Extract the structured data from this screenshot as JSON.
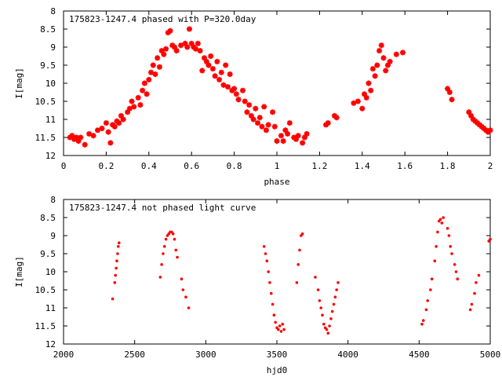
{
  "colors": {
    "series": "#ff0000",
    "axis": "#000000",
    "background": "#ffffff"
  },
  "chart_data": [
    {
      "type": "scatter",
      "title": "175823-1247.4 phased with P=320.0day",
      "xlabel": "phase",
      "ylabel": "I[mag]",
      "xlim": [
        0,
        2
      ],
      "ylim": [
        12,
        8
      ],
      "y_inverted": true,
      "x_ticks": [
        0,
        0.2,
        0.4,
        0.6,
        0.8,
        1,
        1.2,
        1.4,
        1.6,
        1.8,
        2
      ],
      "y_ticks": [
        8,
        8.5,
        9,
        9.5,
        10,
        10.5,
        11,
        11.5,
        12
      ],
      "x_tick_labels": [
        "0",
        "0.2",
        "0.4",
        "0.6",
        "0.8",
        "1",
        "1.2",
        "1.4",
        "1.6",
        "1.8",
        "2"
      ],
      "y_tick_labels": [
        "8",
        "8.5",
        "9",
        "9.5",
        "10",
        "10.5",
        "11",
        "11.5",
        "12"
      ],
      "grid": false,
      "marker": "plus",
      "points": [
        [
          0.03,
          11.5
        ],
        [
          0.04,
          11.45
        ],
        [
          0.05,
          11.55
        ],
        [
          0.06,
          11.5
        ],
        [
          0.07,
          11.6
        ],
        [
          0.08,
          11.5
        ],
        [
          0.1,
          11.7
        ],
        [
          0.12,
          11.4
        ],
        [
          0.14,
          11.45
        ],
        [
          0.16,
          11.3
        ],
        [
          0.18,
          11.25
        ],
        [
          0.2,
          11.1
        ],
        [
          0.21,
          11.35
        ],
        [
          0.22,
          11.65
        ],
        [
          0.23,
          11.15
        ],
        [
          0.24,
          11.2
        ],
        [
          0.25,
          11.05
        ],
        [
          0.26,
          11.1
        ],
        [
          0.27,
          10.9
        ],
        [
          0.28,
          11.0
        ],
        [
          0.3,
          10.8
        ],
        [
          0.31,
          10.7
        ],
        [
          0.32,
          10.5
        ],
        [
          0.33,
          10.65
        ],
        [
          0.35,
          10.4
        ],
        [
          0.36,
          10.6
        ],
        [
          0.37,
          10.2
        ],
        [
          0.38,
          10.0
        ],
        [
          0.39,
          10.3
        ],
        [
          0.4,
          9.9
        ],
        [
          0.41,
          9.7
        ],
        [
          0.42,
          9.5
        ],
        [
          0.43,
          9.75
        ],
        [
          0.44,
          9.3
        ],
        [
          0.45,
          9.55
        ],
        [
          0.46,
          9.1
        ],
        [
          0.47,
          9.2
        ],
        [
          0.48,
          9.05
        ],
        [
          0.49,
          8.6
        ],
        [
          0.5,
          8.55
        ],
        [
          0.51,
          8.95
        ],
        [
          0.52,
          9.0
        ],
        [
          0.53,
          9.1
        ],
        [
          0.55,
          8.95
        ],
        [
          0.57,
          8.9
        ],
        [
          0.58,
          9.0
        ],
        [
          0.59,
          8.5
        ],
        [
          0.6,
          8.9
        ],
        [
          0.61,
          9.0
        ],
        [
          0.62,
          9.05
        ],
        [
          0.63,
          8.9
        ],
        [
          0.64,
          9.1
        ],
        [
          0.65,
          9.65
        ],
        [
          0.66,
          9.3
        ],
        [
          0.67,
          9.4
        ],
        [
          0.68,
          9.5
        ],
        [
          0.69,
          9.25
        ],
        [
          0.7,
          9.6
        ],
        [
          0.71,
          9.8
        ],
        [
          0.72,
          9.4
        ],
        [
          0.73,
          9.9
        ],
        [
          0.74,
          9.7
        ],
        [
          0.75,
          10.05
        ],
        [
          0.76,
          9.5
        ],
        [
          0.77,
          10.1
        ],
        [
          0.78,
          9.75
        ],
        [
          0.79,
          10.2
        ],
        [
          0.8,
          10.15
        ],
        [
          0.81,
          10.3
        ],
        [
          0.82,
          10.45
        ],
        [
          0.84,
          10.2
        ],
        [
          0.85,
          10.5
        ],
        [
          0.86,
          10.8
        ],
        [
          0.87,
          10.6
        ],
        [
          0.88,
          10.9
        ],
        [
          0.89,
          11.0
        ],
        [
          0.9,
          10.7
        ],
        [
          0.91,
          11.1
        ],
        [
          0.92,
          10.95
        ],
        [
          0.93,
          11.2
        ],
        [
          0.94,
          10.65
        ],
        [
          0.95,
          11.3
        ],
        [
          0.96,
          11.15
        ],
        [
          0.98,
          10.8
        ],
        [
          0.99,
          11.2
        ],
        [
          1.0,
          11.6
        ],
        [
          1.02,
          11.45
        ],
        [
          1.03,
          11.6
        ],
        [
          1.04,
          11.3
        ],
        [
          1.05,
          11.4
        ],
        [
          1.06,
          11.1
        ],
        [
          1.08,
          11.5
        ],
        [
          1.09,
          11.55
        ],
        [
          1.1,
          11.45
        ],
        [
          1.12,
          11.65
        ],
        [
          1.13,
          11.5
        ],
        [
          1.14,
          11.4
        ],
        [
          1.23,
          11.15
        ],
        [
          1.24,
          11.1
        ],
        [
          1.27,
          10.9
        ],
        [
          1.28,
          10.95
        ],
        [
          1.36,
          10.55
        ],
        [
          1.38,
          10.5
        ],
        [
          1.4,
          10.7
        ],
        [
          1.41,
          10.3
        ],
        [
          1.42,
          10.4
        ],
        [
          1.43,
          10.0
        ],
        [
          1.44,
          10.2
        ],
        [
          1.45,
          9.6
        ],
        [
          1.46,
          9.8
        ],
        [
          1.47,
          9.5
        ],
        [
          1.48,
          9.1
        ],
        [
          1.49,
          8.95
        ],
        [
          1.5,
          9.3
        ],
        [
          1.51,
          9.65
        ],
        [
          1.52,
          9.5
        ],
        [
          1.53,
          9.4
        ],
        [
          1.56,
          9.2
        ],
        [
          1.59,
          9.15
        ],
        [
          1.8,
          10.15
        ],
        [
          1.81,
          10.25
        ],
        [
          1.82,
          10.45
        ],
        [
          1.9,
          10.8
        ],
        [
          1.91,
          10.9
        ],
        [
          1.92,
          11.0
        ],
        [
          1.93,
          11.05
        ],
        [
          1.94,
          11.1
        ],
        [
          1.95,
          11.15
        ],
        [
          1.96,
          11.2
        ],
        [
          1.97,
          11.25
        ],
        [
          1.98,
          11.3
        ],
        [
          1.99,
          11.35
        ],
        [
          2.0,
          11.3
        ]
      ]
    },
    {
      "type": "scatter",
      "title": "175823-1247.4 not phased light curve",
      "xlabel": "hjd0",
      "ylabel": "I[mag]",
      "xlim": [
        2000,
        5000
      ],
      "ylim": [
        12,
        8
      ],
      "y_inverted": true,
      "x_ticks": [
        2000,
        2500,
        3000,
        3500,
        4000,
        4500,
        5000
      ],
      "y_ticks": [
        8,
        8.5,
        9,
        9.5,
        10,
        10.5,
        11,
        11.5,
        12
      ],
      "x_tick_labels": [
        "2000",
        "2500",
        "3000",
        "3500",
        "4000",
        "4500",
        "5000"
      ],
      "y_tick_labels": [
        "8",
        "8.5",
        "9",
        "9.5",
        "10",
        "10.5",
        "11",
        "11.5",
        "12"
      ],
      "grid": false,
      "marker": "dot",
      "points": [
        [
          2345,
          10.75
        ],
        [
          2360,
          10.3
        ],
        [
          2365,
          10.1
        ],
        [
          2370,
          9.9
        ],
        [
          2375,
          9.7
        ],
        [
          2380,
          9.5
        ],
        [
          2385,
          9.3
        ],
        [
          2390,
          9.2
        ],
        [
          2680,
          10.15
        ],
        [
          2690,
          9.8
        ],
        [
          2700,
          9.5
        ],
        [
          2710,
          9.3
        ],
        [
          2720,
          9.1
        ],
        [
          2730,
          9.0
        ],
        [
          2740,
          8.95
        ],
        [
          2750,
          8.9
        ],
        [
          2760,
          8.9
        ],
        [
          2770,
          8.95
        ],
        [
          2780,
          9.1
        ],
        [
          2790,
          9.4
        ],
        [
          2800,
          9.6
        ],
        [
          2830,
          10.2
        ],
        [
          2840,
          10.5
        ],
        [
          2860,
          10.7
        ],
        [
          2880,
          11.0
        ],
        [
          3410,
          9.3
        ],
        [
          3420,
          9.5
        ],
        [
          3430,
          9.7
        ],
        [
          3440,
          10.0
        ],
        [
          3450,
          10.3
        ],
        [
          3460,
          10.6
        ],
        [
          3470,
          10.9
        ],
        [
          3480,
          11.2
        ],
        [
          3490,
          11.4
        ],
        [
          3500,
          11.55
        ],
        [
          3510,
          11.6
        ],
        [
          3520,
          11.5
        ],
        [
          3530,
          11.65
        ],
        [
          3540,
          11.45
        ],
        [
          3550,
          11.6
        ],
        [
          3640,
          10.3
        ],
        [
          3650,
          9.8
        ],
        [
          3660,
          9.4
        ],
        [
          3670,
          9.0
        ],
        [
          3680,
          8.95
        ],
        [
          3770,
          10.15
        ],
        [
          3790,
          10.5
        ],
        [
          3800,
          10.8
        ],
        [
          3810,
          11.0
        ],
        [
          3820,
          11.2
        ],
        [
          3830,
          11.45
        ],
        [
          3840,
          11.55
        ],
        [
          3850,
          11.6
        ],
        [
          3860,
          11.7
        ],
        [
          3870,
          11.5
        ],
        [
          3880,
          11.3
        ],
        [
          3890,
          11.1
        ],
        [
          3900,
          10.9
        ],
        [
          3910,
          10.7
        ],
        [
          3920,
          10.5
        ],
        [
          3930,
          10.3
        ],
        [
          4520,
          11.45
        ],
        [
          4530,
          11.35
        ],
        [
          4550,
          11.05
        ],
        [
          4560,
          10.8
        ],
        [
          4580,
          10.5
        ],
        [
          4590,
          10.2
        ],
        [
          4610,
          9.7
        ],
        [
          4620,
          9.3
        ],
        [
          4630,
          8.9
        ],
        [
          4640,
          8.6
        ],
        [
          4650,
          8.55
        ],
        [
          4660,
          8.65
        ],
        [
          4670,
          8.5
        ],
        [
          4700,
          8.8
        ],
        [
          4710,
          9.0
        ],
        [
          4720,
          9.3
        ],
        [
          4730,
          9.5
        ],
        [
          4750,
          9.8
        ],
        [
          4760,
          10.0
        ],
        [
          4770,
          10.2
        ],
        [
          4860,
          11.05
        ],
        [
          4870,
          10.9
        ],
        [
          4890,
          10.6
        ],
        [
          4900,
          10.3
        ],
        [
          4920,
          10.1
        ],
        [
          4990,
          9.15
        ],
        [
          5000,
          9.1
        ]
      ]
    }
  ]
}
